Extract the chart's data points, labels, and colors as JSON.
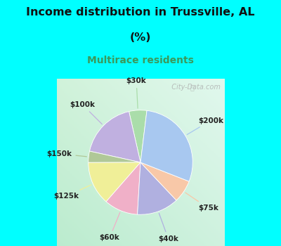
{
  "title_line1": "Income distribution in Trussville, AL",
  "title_line2": "(%)",
  "subtitle": "Multirace residents",
  "title_color": "#111111",
  "subtitle_color": "#3a9a5c",
  "header_bg": "#00FFFF",
  "chart_bg": "#e0f0e8",
  "labels": [
    "$30k",
    "$100k",
    "$150k",
    "$125k",
    "$60k",
    "$40k",
    "$75k",
    "$200k"
  ],
  "values": [
    5.5,
    18.0,
    3.5,
    13.5,
    10.5,
    13.0,
    7.0,
    29.0
  ],
  "colors": [
    "#aaddaa",
    "#c0b0e0",
    "#b0c898",
    "#f0ef98",
    "#f0b0c8",
    "#b0b0e0",
    "#f8c8a8",
    "#a8c8f0"
  ],
  "startangle": 83,
  "watermark": "  City-Data.com"
}
